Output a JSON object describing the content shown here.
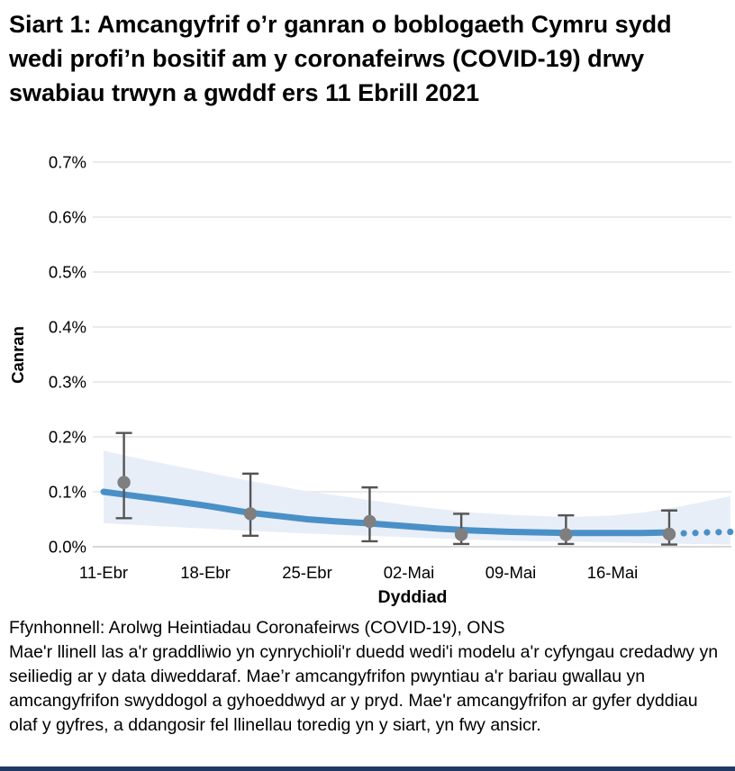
{
  "page": {
    "title": "Siart 1: Amcangyfrif o’r ganran o boblogaeth Cymru sydd wedi profi’n bositif am y coronafeirws (COVID-19) drwy swabiau trwyn a gwddf ers 11 Ebrill 2021",
    "source_line": "Ffynhonnell: Arolwg Heintiadau Coronafeirws (COVID-19), ONS",
    "note": "Mae'r llinell las a'r graddliwio yn cynrychioli'r duedd wedi'i modelu a'r cyfyngau credadwy yn seiliedig ar y data diweddaraf. Mae’r amcangyfrifon pwyntiau a'r bariau gwallau yn amcangyfrifon swyddogol a gyhoeddwyd ar y pryd. Mae'r amcangyfrifon ar gyfer dyddiau olaf y gyfres, a ddangosir fel llinellau toredig yn y siart, yn fwy ansicr."
  },
  "chart_data": {
    "type": "line",
    "title": "Siart 1: Amcangyfrif o’r ganran o boblogaeth Cymru sydd wedi profi’n bositif am y coronafeirws (COVID-19) drwy swabiau trwyn a gwddf ers 11 Ebrill 2021",
    "xlabel": "Dyddiad",
    "ylabel": "Canran",
    "ylim_pct": [
      0.0,
      0.7
    ],
    "grid": "horizontal-only",
    "legend": "none",
    "x_axis_days_span": [
      0,
      43.1
    ],
    "y_ticks": [
      {
        "value": 0.0,
        "label": "0.0%"
      },
      {
        "value": 0.1,
        "label": "0.1%"
      },
      {
        "value": 0.2,
        "label": "0.2%"
      },
      {
        "value": 0.3,
        "label": "0.3%"
      },
      {
        "value": 0.4,
        "label": "0.4%"
      },
      {
        "value": 0.5,
        "label": "0.5%"
      },
      {
        "value": 0.6,
        "label": "0.6%"
      },
      {
        "value": 0.7,
        "label": "0.7%"
      }
    ],
    "x_ticks": [
      {
        "day": 0,
        "label": "11-Ebr"
      },
      {
        "day": 7,
        "label": "18-Ebr"
      },
      {
        "day": 14,
        "label": "25-Ebr"
      },
      {
        "day": 21,
        "label": "02-Mai"
      },
      {
        "day": 28,
        "label": "09-Mai"
      },
      {
        "day": 35,
        "label": "16-Mai"
      }
    ],
    "series": [
      {
        "name": "modelled-trend",
        "style": "solid",
        "points": [
          {
            "day": 0,
            "value": 0.1
          },
          {
            "day": 2,
            "value": 0.093
          },
          {
            "day": 4,
            "value": 0.086
          },
          {
            "day": 7,
            "value": 0.075
          },
          {
            "day": 10,
            "value": 0.062
          },
          {
            "day": 12,
            "value": 0.056
          },
          {
            "day": 14,
            "value": 0.05
          },
          {
            "day": 16,
            "value": 0.046
          },
          {
            "day": 18,
            "value": 0.043
          },
          {
            "day": 21,
            "value": 0.037
          },
          {
            "day": 23,
            "value": 0.033
          },
          {
            "day": 25,
            "value": 0.03
          },
          {
            "day": 28,
            "value": 0.027
          },
          {
            "day": 30,
            "value": 0.026
          },
          {
            "day": 32,
            "value": 0.025
          },
          {
            "day": 35,
            "value": 0.025
          },
          {
            "day": 37,
            "value": 0.025
          },
          {
            "day": 38.9,
            "value": 0.026
          }
        ]
      },
      {
        "name": "modelled-trend-uncertain-tail",
        "style": "dotted",
        "points": [
          {
            "day": 39.9,
            "value": 0.0245
          },
          {
            "day": 40.7,
            "value": 0.025
          },
          {
            "day": 41.5,
            "value": 0.026
          },
          {
            "day": 42.3,
            "value": 0.0265
          },
          {
            "day": 43.1,
            "value": 0.027
          }
        ]
      }
    ],
    "credible_band": [
      {
        "day": 0,
        "hi": 0.175,
        "lo": 0.043
      },
      {
        "day": 2,
        "hi": 0.163,
        "lo": 0.04
      },
      {
        "day": 4,
        "hi": 0.152,
        "lo": 0.037
      },
      {
        "day": 7,
        "hi": 0.136,
        "lo": 0.033
      },
      {
        "day": 10,
        "hi": 0.12,
        "lo": 0.029
      },
      {
        "day": 14,
        "hi": 0.101,
        "lo": 0.024
      },
      {
        "day": 18,
        "hi": 0.086,
        "lo": 0.02
      },
      {
        "day": 21,
        "hi": 0.075,
        "lo": 0.017
      },
      {
        "day": 25,
        "hi": 0.063,
        "lo": 0.013
      },
      {
        "day": 28,
        "hi": 0.058,
        "lo": 0.011
      },
      {
        "day": 32,
        "hi": 0.054,
        "lo": 0.009
      },
      {
        "day": 35,
        "hi": 0.057,
        "lo": 0.008
      },
      {
        "day": 37,
        "hi": 0.062,
        "lo": 0.006
      },
      {
        "day": 40,
        "hi": 0.075,
        "lo": 0.005
      },
      {
        "day": 43.1,
        "hi": 0.092,
        "lo": 0.004
      }
    ],
    "official_point_estimates": [
      {
        "day": 1.4,
        "date": "13-Ebr",
        "est": 0.117,
        "lo": 0.052,
        "hi": 0.207
      },
      {
        "day": 10.1,
        "date": "21-Ebr",
        "est": 0.06,
        "lo": 0.02,
        "hi": 0.133
      },
      {
        "day": 18.3,
        "date": "29-Ebr",
        "est": 0.046,
        "lo": 0.01,
        "hi": 0.108
      },
      {
        "day": 24.6,
        "date": "05-Mai",
        "est": 0.022,
        "lo": 0.005,
        "hi": 0.06
      },
      {
        "day": 31.8,
        "date": "12-Mai",
        "est": 0.022,
        "lo": 0.005,
        "hi": 0.057
      },
      {
        "day": 38.9,
        "date": "19-Mai",
        "est": 0.023,
        "lo": 0.004,
        "hi": 0.066
      }
    ],
    "colors": {
      "trend_line": "#4a90c7",
      "credible_band": "#e8eef8",
      "error_bar": "#545454",
      "point_marker": "#7f7f7f",
      "gridline": "#e3e3e3",
      "axis_line": "#cccccc",
      "text": "#000000",
      "bottom_rule": "#1f3864"
    }
  }
}
